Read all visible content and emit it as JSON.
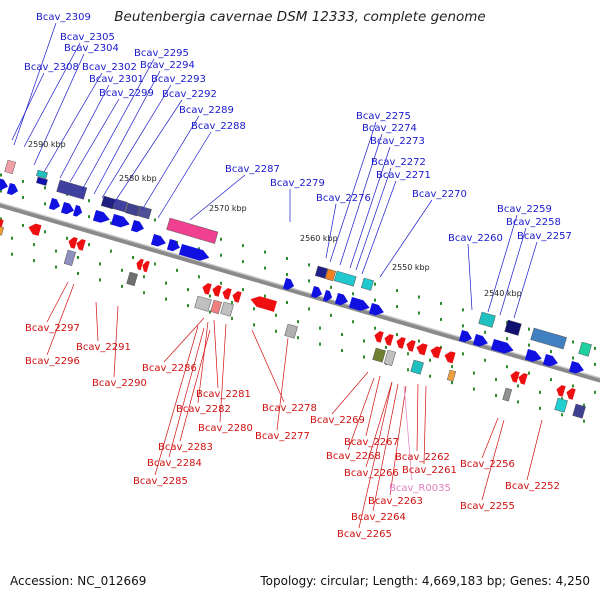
{
  "title": "Beutenbergia cavernae DSM 12333, complete genome",
  "footer": {
    "accession": "Accession: NC_012669",
    "summary": "Topology: circular; Length: 4,669,183 bp; Genes: 4,250"
  },
  "ruler_labels": [
    "2590 kbp",
    "2580 kbp",
    "2570 kbp",
    "2560 kbp",
    "2550 kbp",
    "2540 kbp"
  ],
  "colors": {
    "forward_label": "#1a1acc",
    "reverse_label": "#d01010",
    "rna_label": "#e080c0",
    "forward_arrow": "#1010e0",
    "reverse_arrow": "#ee1010",
    "backbone": "#8a8a8a",
    "tick": "#2e8b2e"
  },
  "forward_genes": [
    "Bcav_2309",
    "Bcav_2305",
    "Bcav_2304",
    "Bcav_2308",
    "Bcav_2302",
    "Bcav_2301",
    "Bcav_2299",
    "Bcav_2295",
    "Bcav_2294",
    "Bcav_2293",
    "Bcav_2292",
    "Bcav_2289",
    "Bcav_2288",
    "Bcav_2287",
    "Bcav_2279",
    "Bcav_2276",
    "Bcav_2275",
    "Bcav_2274",
    "Bcav_2273",
    "Bcav_2272",
    "Bcav_2271",
    "Bcav_2270",
    "Bcav_2260",
    "Bcav_2259",
    "Bcav_2258",
    "Bcav_2257"
  ],
  "reverse_genes": [
    "Bcav_2297",
    "Bcav_2296",
    "Bcav_2291",
    "Bcav_2290",
    "Bcav_2286",
    "Bcav_2281",
    "Bcav_2282",
    "Bcav_2280",
    "Bcav_2278",
    "Bcav_2277",
    "Bcav_2283",
    "Bcav_2284",
    "Bcav_2285",
    "Bcav_2269",
    "Bcav_2267",
    "Bcav_2268",
    "Bcav_2266",
    "Bcav_2262",
    "Bcav_2261",
    "Bcav_2263",
    "Bcav_2264",
    "Bcav_2265",
    "Bcav_2256",
    "Bcav_2255",
    "Bcav_2252"
  ],
  "rna_genes": [
    "Bcav_R0035"
  ]
}
